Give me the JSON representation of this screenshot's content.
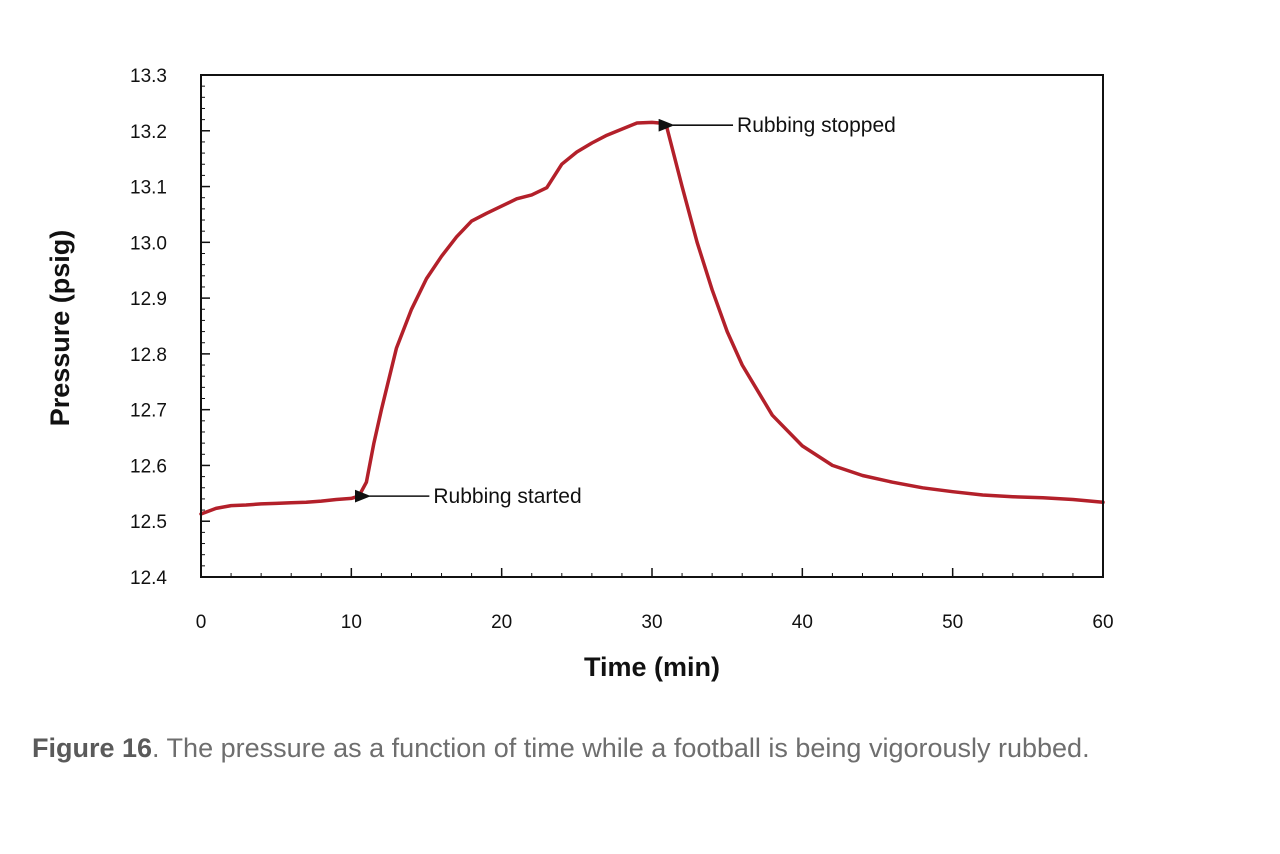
{
  "chart_data": {
    "type": "line",
    "xlabel": "Time (min)",
    "ylabel": "Pressure (psig)",
    "xlim": [
      0,
      60
    ],
    "ylim": [
      12.4,
      13.3
    ],
    "xticks": [
      "0",
      "10",
      "20",
      "30",
      "40",
      "50",
      "60"
    ],
    "yticks": [
      "12.4",
      "12.5",
      "12.6",
      "12.7",
      "12.8",
      "12.9",
      "13.0",
      "13.1",
      "13.2",
      "13.3"
    ],
    "grid": false,
    "legend": false,
    "line_color": "#b3202a",
    "series": [
      {
        "x": [
          0,
          1,
          2,
          3,
          4,
          5,
          6,
          7,
          8,
          9,
          10,
          10.5,
          11,
          11.5,
          12,
          13,
          14,
          15,
          16,
          17,
          18,
          19,
          20,
          21,
          22,
          23,
          24,
          25,
          26,
          27,
          28,
          29,
          30,
          30.5,
          31,
          32,
          33,
          34,
          35,
          36,
          38,
          40,
          42,
          44,
          46,
          48,
          50,
          52,
          54,
          56,
          58,
          60
        ],
        "y": [
          12.513,
          12.523,
          12.528,
          12.529,
          12.531,
          12.532,
          12.533,
          12.534,
          12.536,
          12.539,
          12.541,
          12.545,
          12.57,
          12.64,
          12.7,
          12.81,
          12.88,
          12.935,
          12.975,
          13.01,
          13.038,
          13.052,
          13.065,
          13.078,
          13.085,
          13.098,
          13.14,
          13.162,
          13.178,
          13.192,
          13.203,
          13.214,
          13.215,
          13.214,
          13.205,
          13.1,
          13.0,
          12.915,
          12.84,
          12.78,
          12.69,
          12.635,
          12.6,
          12.582,
          12.57,
          12.56,
          12.553,
          12.547,
          12.544,
          12.542,
          12.539,
          12.534
        ]
      }
    ],
    "annotations": [
      {
        "text": "Rubbing started",
        "x": 10.8,
        "y": 12.545
      },
      {
        "text": "Rubbing stopped",
        "x": 31,
        "y": 13.21
      }
    ]
  },
  "caption": {
    "lead": "Figure 16",
    "text": ".  The pressure as a function of time while a football is being vigorously rubbed."
  }
}
